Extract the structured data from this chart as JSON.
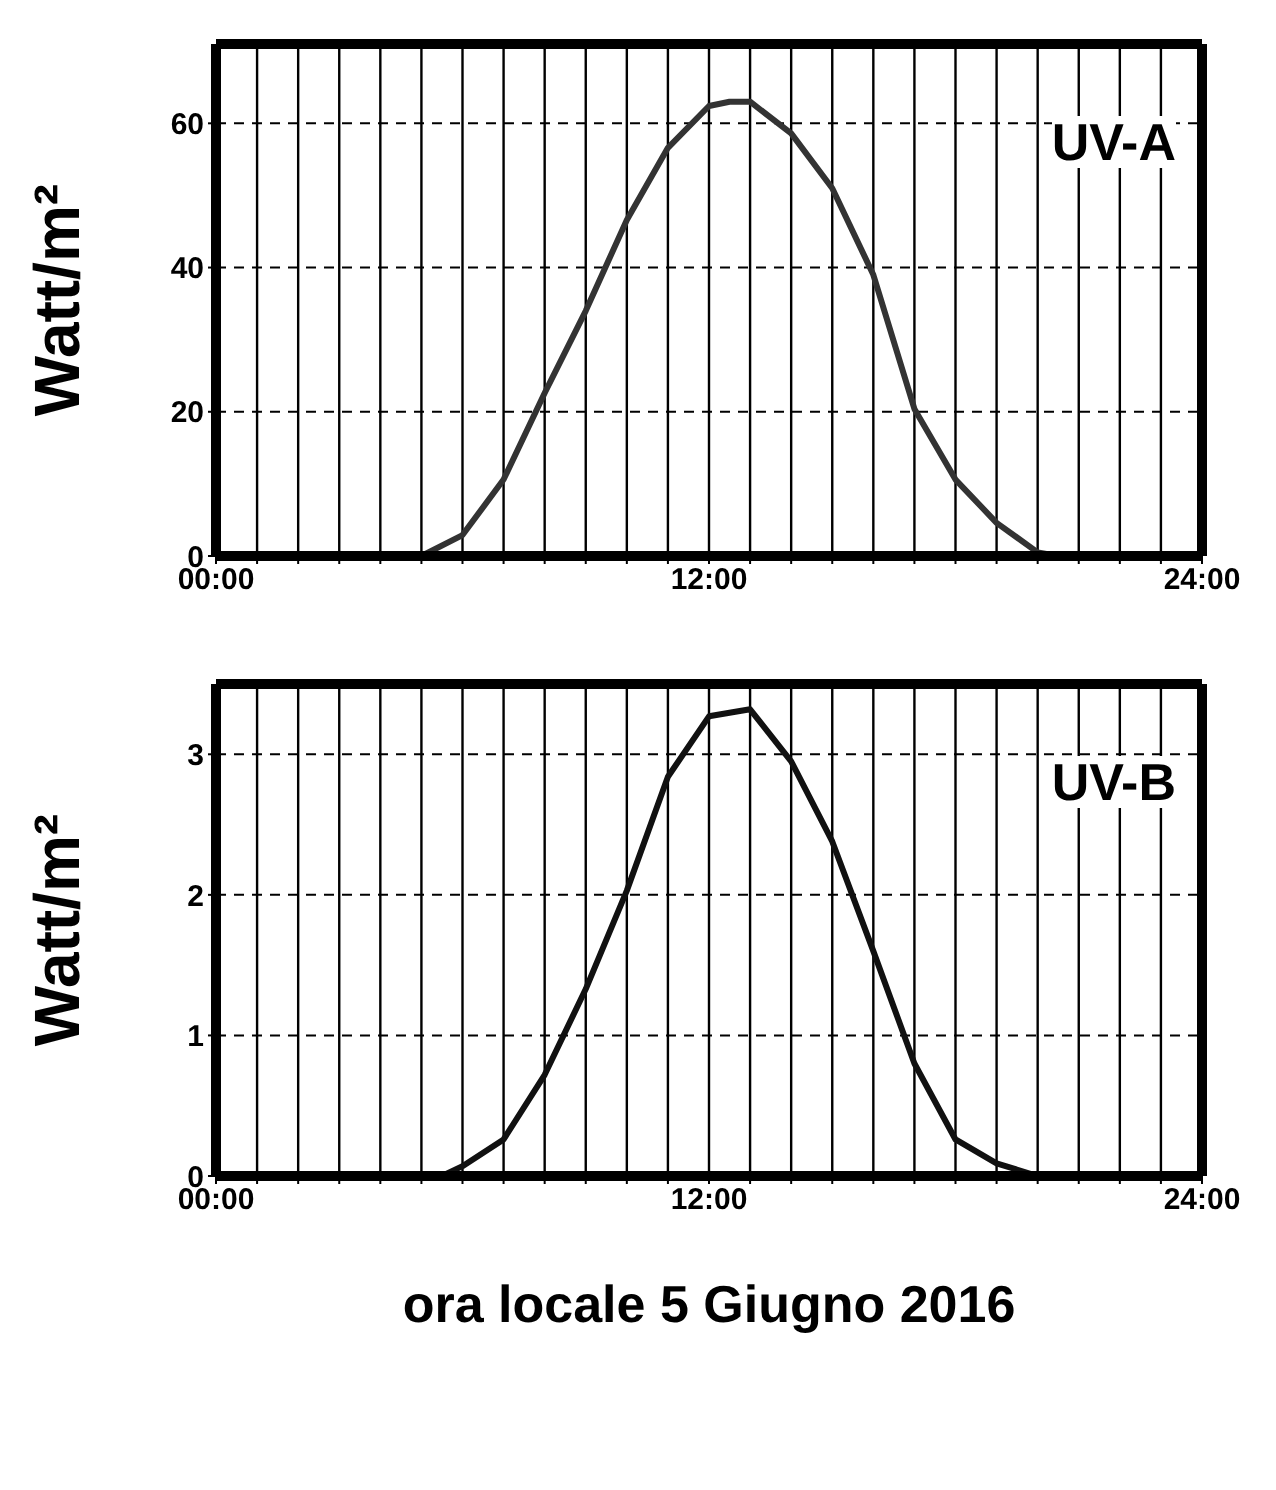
{
  "chart_data": [
    {
      "type": "line",
      "ylabel": "Watt/m²",
      "annotations": [
        "UV-A"
      ],
      "xlim": [
        0,
        24
      ],
      "ylim": [
        0,
        71
      ],
      "yticks": [
        0,
        20,
        40,
        60
      ],
      "xticks": [
        {
          "value": 0,
          "label": "00:00"
        },
        {
          "value": 1,
          "label": null
        },
        {
          "value": 2,
          "label": null
        },
        {
          "value": 3,
          "label": null
        },
        {
          "value": 4,
          "label": null
        },
        {
          "value": 5,
          "label": null
        },
        {
          "value": 6,
          "label": null
        },
        {
          "value": 7,
          "label": null
        },
        {
          "value": 8,
          "label": null
        },
        {
          "value": 9,
          "label": null
        },
        {
          "value": 10,
          "label": null
        },
        {
          "value": 11,
          "label": null
        },
        {
          "value": 12,
          "label": "12:00"
        },
        {
          "value": 13,
          "label": null
        },
        {
          "value": 14,
          "label": null
        },
        {
          "value": 15,
          "label": null
        },
        {
          "value": 16,
          "label": null
        },
        {
          "value": 17,
          "label": null
        },
        {
          "value": 18,
          "label": null
        },
        {
          "value": 19,
          "label": null
        },
        {
          "value": 20,
          "label": null
        },
        {
          "value": 21,
          "label": null
        },
        {
          "value": 22,
          "label": null
        },
        {
          "value": 23,
          "label": null
        },
        {
          "value": 24,
          "label": "24:00"
        }
      ],
      "grid": true,
      "marker": "none",
      "line_style": "solid",
      "series": [
        {
          "color": "#333333",
          "x": [
            0,
            5,
            6,
            7,
            8,
            9,
            10,
            11,
            12,
            12.5,
            13,
            14,
            15,
            16,
            17,
            18,
            19,
            20,
            20.5,
            24
          ],
          "values": [
            0,
            0,
            2.9,
            10.6,
            22.6,
            34,
            46.6,
            56.6,
            62.4,
            63,
            63,
            58.6,
            51,
            39,
            20.4,
            10.6,
            4.6,
            0.5,
            0,
            0
          ]
        }
      ]
    },
    {
      "type": "line",
      "ylabel": "Watt/m²",
      "xlabel": "ora locale 5 Giugno 2016",
      "annotations": [
        "UV-B"
      ],
      "xlim": [
        0,
        24
      ],
      "ylim": [
        0,
        3.5
      ],
      "yticks": [
        0,
        1,
        2,
        3
      ],
      "xticks": [
        {
          "value": 0,
          "label": "00:00"
        },
        {
          "value": 1,
          "label": null
        },
        {
          "value": 2,
          "label": null
        },
        {
          "value": 3,
          "label": null
        },
        {
          "value": 4,
          "label": null
        },
        {
          "value": 5,
          "label": null
        },
        {
          "value": 6,
          "label": null
        },
        {
          "value": 7,
          "label": null
        },
        {
          "value": 8,
          "label": null
        },
        {
          "value": 9,
          "label": null
        },
        {
          "value": 10,
          "label": null
        },
        {
          "value": 11,
          "label": null
        },
        {
          "value": 12,
          "label": "12:00"
        },
        {
          "value": 13,
          "label": null
        },
        {
          "value": 14,
          "label": null
        },
        {
          "value": 15,
          "label": null
        },
        {
          "value": 16,
          "label": null
        },
        {
          "value": 17,
          "label": null
        },
        {
          "value": 18,
          "label": null
        },
        {
          "value": 19,
          "label": null
        },
        {
          "value": 20,
          "label": null
        },
        {
          "value": 21,
          "label": null
        },
        {
          "value": 22,
          "label": null
        },
        {
          "value": 23,
          "label": null
        },
        {
          "value": 24,
          "label": "24:00"
        }
      ],
      "grid": true,
      "marker": "none",
      "line_style": "solid",
      "series": [
        {
          "color": "#111111",
          "x": [
            0,
            5.5,
            6,
            7,
            8,
            9,
            10,
            11,
            12,
            13,
            14,
            15,
            16,
            17,
            18,
            19,
            20,
            24
          ],
          "values": [
            0,
            0,
            0.07,
            0.26,
            0.72,
            1.33,
            2.03,
            2.84,
            3.27,
            3.32,
            2.95,
            2.38,
            1.6,
            0.8,
            0.26,
            0.09,
            0,
            0
          ]
        }
      ]
    }
  ]
}
